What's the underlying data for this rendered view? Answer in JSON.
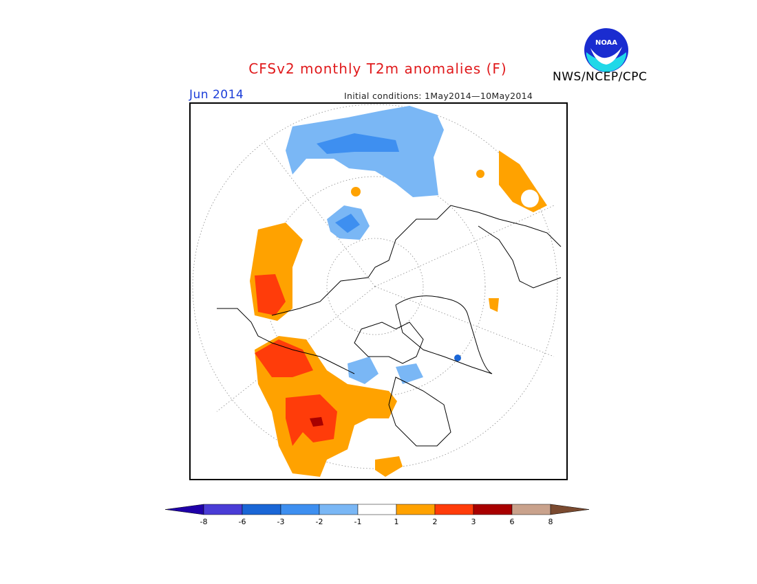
{
  "header": {
    "title": "CFSv2 monthly T2m anomalies (F)",
    "organization": "NWS/NCEP/CPC",
    "logo_text": "NOAA",
    "valid_month": "Jun 2014",
    "initial_conditions": "Initial conditions: 1May2014—10May2014"
  },
  "map": {
    "projection": "north polar stereographic",
    "anomaly_regions": [
      {
        "name": "northern-europe-russia",
        "class": "-2 to -1"
      },
      {
        "name": "northern-europe-core",
        "class": "-3 to -2"
      },
      {
        "name": "scandinavia",
        "class": "-3 to -2"
      },
      {
        "name": "greenland-spot",
        "class": "-6 to -3"
      },
      {
        "name": "canadian-archipelago",
        "class": "-2 to -1"
      },
      {
        "name": "alaska-western-canada",
        "class": "1 to 2"
      },
      {
        "name": "alaska-core",
        "class": "2 to 3"
      },
      {
        "name": "east-asia",
        "class": "1 to 2"
      },
      {
        "name": "east-asia-core",
        "class": "2 to 3"
      },
      {
        "name": "east-asia-peak",
        "class": "3 to 6"
      },
      {
        "name": "mediterranean",
        "class": "1 to 2"
      }
    ]
  },
  "colorbar": {
    "labels": [
      "-8",
      "-6",
      "-3",
      "-2",
      "-1",
      "1",
      "2",
      "3",
      "6",
      "8"
    ],
    "colors": [
      "#1f00a8",
      "#4a3cd6",
      "#1a66d6",
      "#3e8ff0",
      "#7ab7f5",
      "#ffffff",
      "#ffa200",
      "#ff3c0a",
      "#a80000",
      "#c9a28c",
      "#7a4a30"
    ]
  }
}
